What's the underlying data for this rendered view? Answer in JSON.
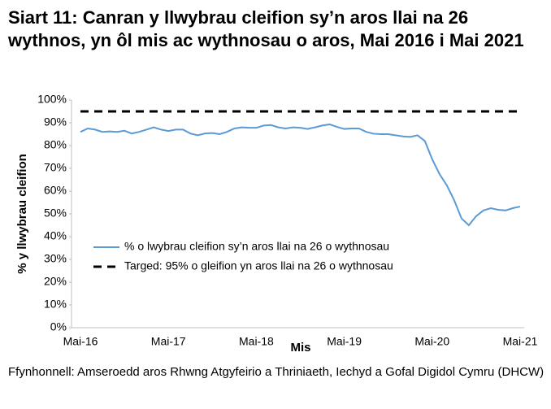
{
  "chart_data": {
    "type": "line",
    "title": "Siart 11: Canran y llwybrau cleifion sy’n aros llai na 26 wythnos, yn ôl mis ac wythnosau o aros, Mai 2016 i Mai 2021",
    "x_label": "Mis",
    "y_label": "% y llwybrau cleifion",
    "source": "Ffynhonnell: Amseroedd aros Rhwng Atgyfeirio a Thriniaeth, Iechyd a Gofal Digidol Cymru (DHCW)",
    "categories": [
      "Mai-16",
      null,
      null,
      null,
      null,
      null,
      null,
      null,
      null,
      null,
      null,
      null,
      "Mai-17",
      null,
      null,
      null,
      null,
      null,
      null,
      null,
      null,
      null,
      null,
      null,
      "Mai-18",
      null,
      null,
      null,
      null,
      null,
      null,
      null,
      null,
      null,
      null,
      null,
      "Mai-19",
      null,
      null,
      null,
      null,
      null,
      null,
      null,
      null,
      null,
      null,
      null,
      "Mai-20",
      null,
      null,
      null,
      null,
      null,
      null,
      null,
      null,
      null,
      null,
      null,
      "Mai-21"
    ],
    "series": [
      {
        "name": "% o lwybrau cleifion sy’n aros llai na 26 o wythnosau",
        "color": "#5b9bd5",
        "dash": false,
        "values": [
          86,
          87.5,
          87,
          86,
          86.2,
          86,
          86.5,
          85.3,
          86,
          87,
          88,
          87,
          86.4,
          87,
          87,
          85.3,
          84.5,
          85.3,
          85.5,
          85,
          86,
          87.5,
          88,
          87.8,
          87.8,
          88.8,
          89,
          88,
          87.5,
          88,
          87.8,
          87.3,
          88,
          88.8,
          89.3,
          88.2,
          87.3,
          87.5,
          87.5,
          86,
          85.2,
          85,
          85,
          84.5,
          84,
          83.8,
          84.5,
          82,
          74,
          67.5,
          62.5,
          56,
          48,
          45,
          49,
          51.5,
          52.5,
          51.8,
          51.5,
          52.5,
          53.2
        ]
      },
      {
        "name": "Targed: 95% o gleifion yn aros llai na 26 o wythnosau",
        "color": "#000000",
        "dash": true,
        "values": [
          95,
          95,
          95,
          95,
          95,
          95,
          95,
          95,
          95,
          95,
          95,
          95,
          95,
          95,
          95,
          95,
          95,
          95,
          95,
          95,
          95,
          95,
          95,
          95,
          95,
          95,
          95,
          95,
          95,
          95,
          95,
          95,
          95,
          95,
          95,
          95,
          95,
          95,
          95,
          95,
          95,
          95,
          95,
          95,
          95,
          95,
          95,
          95,
          95,
          95,
          95,
          95,
          95,
          95,
          95,
          95,
          95,
          95,
          95,
          95,
          95
        ]
      }
    ],
    "ylim": [
      0,
      100
    ],
    "yticks": [
      {
        "value": 0,
        "label": "0%"
      },
      {
        "value": 10,
        "label": "10%"
      },
      {
        "value": 20,
        "label": "20%"
      },
      {
        "value": 30,
        "label": "30%"
      },
      {
        "value": 40,
        "label": "40%"
      },
      {
        "value": 50,
        "label": "50%"
      },
      {
        "value": 60,
        "label": "60%"
      },
      {
        "value": 70,
        "label": "70%"
      },
      {
        "value": 80,
        "label": "80%"
      },
      {
        "value": 90,
        "label": "90%"
      },
      {
        "value": 100,
        "label": "100%"
      }
    ],
    "grid": false,
    "legend": "center left"
  }
}
